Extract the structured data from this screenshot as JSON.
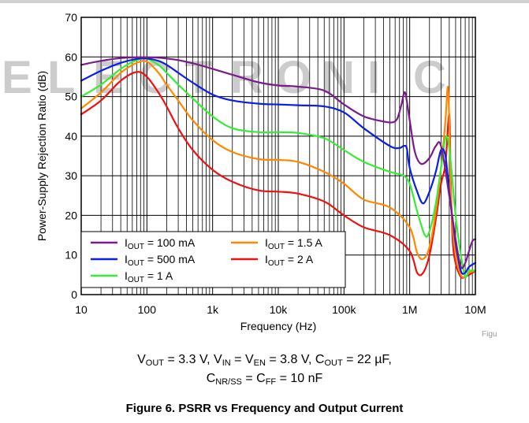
{
  "watermark": {
    "text": "ELECTRONIC"
  },
  "figure_id": "Figu",
  "caption": {
    "line1": {
      "v_out_prefix": "V",
      "v_out_sub": "OUT",
      "v_out_value": " = 3.3 V, ",
      "v_in_prefix": "V",
      "v_in_sub": "IN",
      "v_in_mid": " = V",
      "v_en_sub": "EN",
      "v_in_value": " = 3.8 V, ",
      "c_out_prefix": "C",
      "c_out_sub": "OUT",
      "c_out_value": " = 22 µF,"
    },
    "line2": {
      "c_nr_prefix": "C",
      "c_nr_sub": "NR/SS",
      "c_nr_mid": " = C",
      "c_ff_sub": "FF",
      "c_value": " = 10 nF"
    }
  },
  "figure_title": "Figure 6. PSRR vs Frequency and Output Current",
  "colors": {
    "i100mA": "#7a1a8c",
    "i500mA": "#0a1fe6",
    "i1A": "#33ee33",
    "i1_5A": "#ff8800",
    "i2A": "#ee1111",
    "grid": "#000000"
  },
  "legend": {
    "placement": "bottom-left",
    "items": [
      {
        "prefix": "I",
        "sub": "OUT",
        "value": " = 100 mA",
        "color_key": "i100mA"
      },
      {
        "prefix": "I",
        "sub": "OUT",
        "value": " = 1.5 A",
        "color_key": "i1_5A"
      },
      {
        "prefix": "I",
        "sub": "OUT",
        "value": " = 500 mA",
        "color_key": "i500mA"
      },
      {
        "prefix": "I",
        "sub": "OUT",
        "value": " = 2 A",
        "color_key": "i2A"
      },
      {
        "prefix": "I",
        "sub": "OUT",
        "value": " = 1 A",
        "color_key": "i1A"
      }
    ]
  },
  "chart_data": {
    "type": "line",
    "xlabel": "Frequency (Hz)",
    "ylabel": "Power-Supply Rejection Ratio (dB)",
    "xscale": "log",
    "xlim": [
      10,
      10000000
    ],
    "ylim": [
      0,
      70
    ],
    "grid": true,
    "x_tick_labels": [
      "10",
      "100",
      "1k",
      "10k",
      "100k",
      "1M",
      "10M"
    ],
    "y_tick_labels": [
      "0",
      "10",
      "20",
      "30",
      "40",
      "50",
      "60",
      "70"
    ],
    "series": [
      {
        "name": "I_OUT = 100 mA",
        "color_key": "i100mA",
        "x": [
          10,
          20,
          40,
          70,
          100,
          150,
          200,
          300,
          500,
          1000,
          2000,
          5000,
          10000,
          20000,
          50000,
          100000,
          200000,
          400000,
          550000,
          650000,
          750000,
          850000,
          1000000,
          1200000,
          1500000,
          2000000,
          2500000,
          3000000,
          4000000,
          5000000,
          6000000,
          7000000,
          8000000,
          9000000,
          10000000
        ],
        "y": [
          58,
          59,
          59.7,
          59.9,
          59.9,
          59.8,
          59.6,
          59.2,
          58.4,
          57,
          55.5,
          53.6,
          52.8,
          52.5,
          51.5,
          48,
          45,
          43.7,
          43.5,
          44.5,
          48,
          51,
          44,
          36,
          33,
          34.5,
          37.5,
          37.5,
          25,
          14,
          7,
          8,
          11,
          13.5,
          14
        ]
      },
      {
        "name": "I_OUT = 500 mA",
        "color_key": "i500mA",
        "x": [
          10,
          20,
          40,
          70,
          100,
          150,
          200,
          300,
          500,
          1000,
          2000,
          5000,
          10000,
          20000,
          50000,
          100000,
          200000,
          500000,
          700000,
          800000,
          900000,
          1000000,
          1300000,
          1600000,
          2000000,
          2500000,
          3000000,
          3500000,
          4000000,
          5000000,
          6000000,
          7000000,
          8000000,
          10000000
        ],
        "y": [
          54,
          56.5,
          58.5,
          59.5,
          59.6,
          59,
          58,
          56,
          53.5,
          50.5,
          49,
          48.2,
          48,
          47.8,
          47.5,
          46,
          42,
          37.5,
          37,
          37.5,
          37,
          32,
          26,
          23,
          26,
          31,
          36.5,
          35,
          26,
          13,
          6,
          5.5,
          7,
          8
        ]
      },
      {
        "name": "I_OUT = 1 A",
        "color_key": "i1A",
        "x": [
          10,
          20,
          40,
          70,
          100,
          150,
          200,
          300,
          500,
          1000,
          2000,
          5000,
          10000,
          20000,
          50000,
          100000,
          200000,
          500000,
          800000,
          1000000,
          1300000,
          1700000,
          2000000,
          2500000,
          3000000,
          3500000,
          4000000,
          5000000,
          6000000,
          7000000,
          8000000,
          10000000
        ],
        "y": [
          50,
          53,
          57,
          59.2,
          59.5,
          58,
          56,
          53,
          49.5,
          45,
          42,
          41,
          41,
          40.8,
          39.5,
          36.5,
          33.5,
          31,
          30,
          28,
          21,
          15,
          16,
          23,
          32,
          39.5,
          37,
          20,
          10,
          4.5,
          6,
          6
        ]
      },
      {
        "name": "I_OUT = 1.5 A",
        "color_key": "i1_5A",
        "x": [
          10,
          20,
          40,
          70,
          100,
          150,
          200,
          300,
          500,
          1000,
          2000,
          5000,
          10000,
          20000,
          50000,
          100000,
          200000,
          500000,
          1000000,
          1300000,
          1600000,
          2000000,
          2500000,
          3000000,
          3500000,
          3800000,
          4000000,
          4300000,
          5000000,
          6000000,
          7000000,
          8000000,
          10000000
        ],
        "y": [
          47,
          51,
          56,
          58.5,
          58.8,
          56,
          53,
          49,
          44,
          39,
          36,
          34.2,
          34,
          33.5,
          31,
          28,
          24,
          22,
          17,
          10.5,
          9,
          12,
          21,
          32,
          44,
          52.5,
          44,
          22,
          10,
          5,
          4.5,
          5.5,
          6
        ]
      },
      {
        "name": "I_OUT = 2 A",
        "color_key": "i2A",
        "x": [
          10,
          20,
          40,
          70,
          100,
          150,
          200,
          300,
          500,
          1000,
          2000,
          5000,
          10000,
          20000,
          50000,
          100000,
          200000,
          500000,
          1000000,
          1300000,
          1600000,
          2000000,
          2500000,
          3000000,
          3500000,
          4000000,
          4200000,
          4500000,
          5000000,
          6000000,
          7000000,
          8000000,
          10000000
        ],
        "y": [
          45.5,
          49,
          54,
          56.2,
          55,
          51,
          47.5,
          42,
          36.5,
          31.5,
          28.5,
          26.3,
          26,
          25.5,
          23.5,
          20,
          17,
          15,
          11,
          5.5,
          5.5,
          10,
          19,
          28,
          33,
          45.5,
          30,
          14,
          8,
          4.5,
          4.5,
          5,
          6
        ]
      }
    ]
  }
}
